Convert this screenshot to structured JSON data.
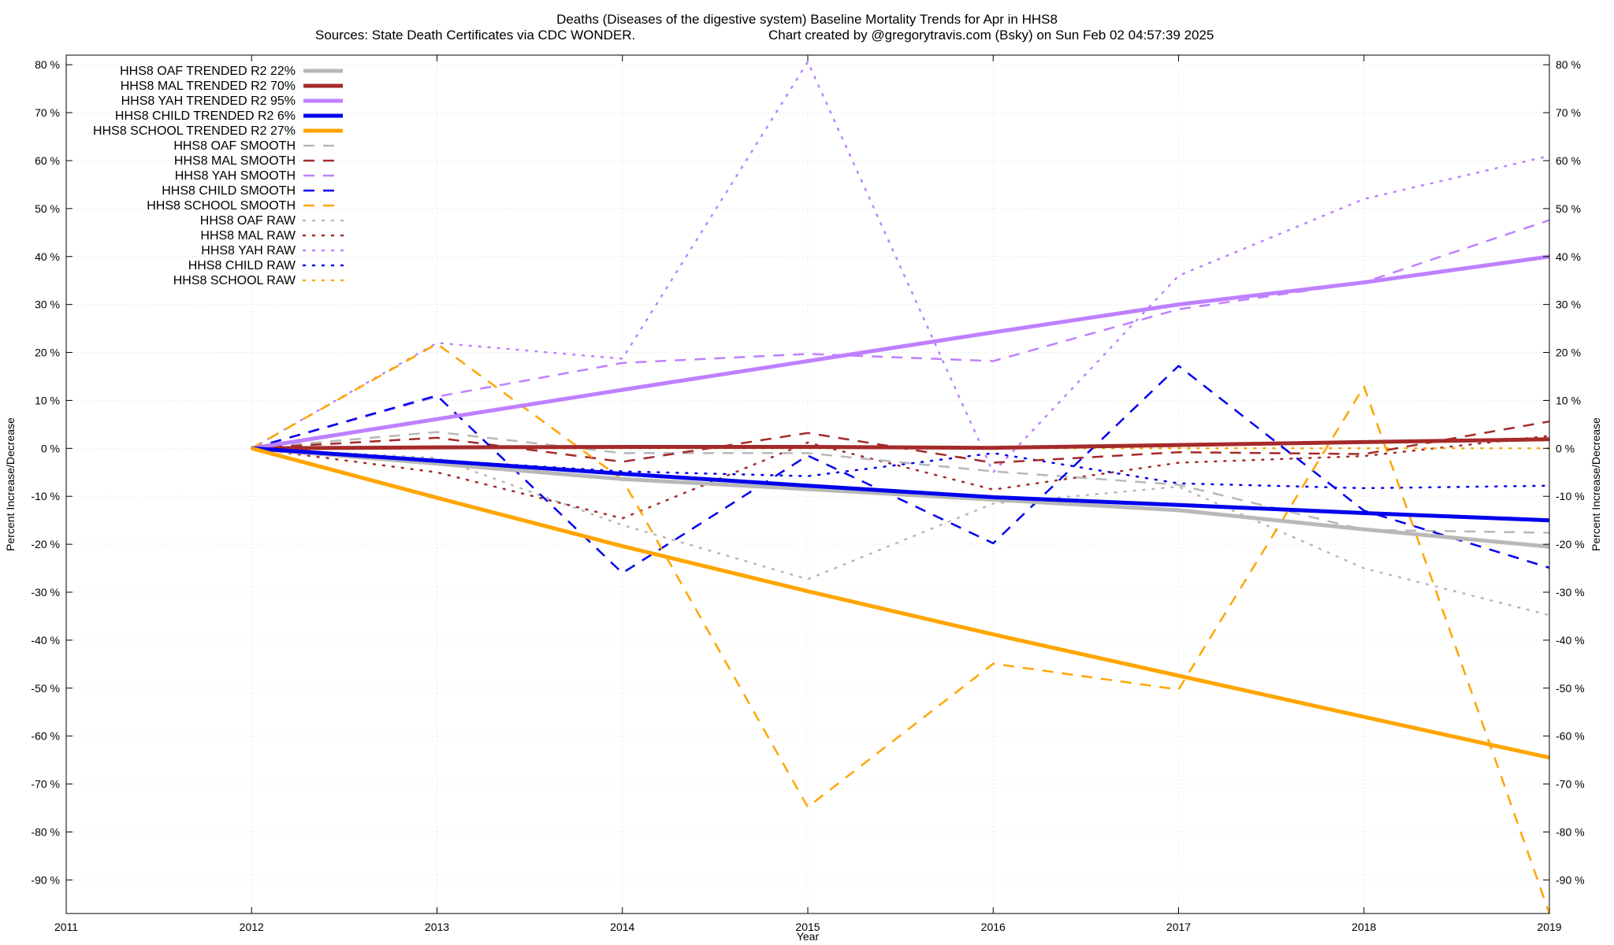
{
  "chart_data": {
    "type": "line",
    "title": "Deaths (Diseases of the digestive system)  Baseline Mortality Trends for Apr in HHS8",
    "subtitle_left": "Sources: State Death Certificates via CDC WONDER.",
    "subtitle_right": "Chart created by @gregorytravis.com (Bsky) on Sun Feb 02 04:57:39 2025",
    "xlabel": "Year",
    "ylabel": "Percent Increase/Decrease",
    "ylabel_right": "Percent Increase/Decrease",
    "xlim": [
      2011,
      2019
    ],
    "ylim": [
      -97,
      82
    ],
    "x_ticks": [
      2011,
      2012,
      2013,
      2014,
      2015,
      2016,
      2017,
      2018,
      2019
    ],
    "x_tick_labels": [
      "2011",
      "2012",
      "2013",
      "2014",
      "2015",
      "2016",
      "2017",
      "2018",
      "2019"
    ],
    "y_ticks": [
      80,
      70,
      60,
      50,
      40,
      30,
      20,
      10,
      0,
      -10,
      -20,
      -30,
      -40,
      -50,
      -60,
      -70,
      -80,
      -90
    ],
    "y_tick_labels": [
      "80 %",
      "70 %",
      "60 %",
      "50 %",
      "40 %",
      "30 %",
      "20 %",
      "10 %",
      "0 %",
      "-10 %",
      "-20 %",
      "-30 %",
      "-40 %",
      "-50 %",
      "-60 %",
      "-70 %",
      "-80 %",
      "-90 %"
    ],
    "grid": true,
    "legend_position": "top-left",
    "x": [
      2012,
      2013,
      2014,
      2015,
      2016,
      2017,
      2018,
      2019
    ],
    "series": [
      {
        "name": "HHS8 OAF TRENDED R2",
        "r2": "22%",
        "style": "solid",
        "color": "#b8b8b8",
        "values": [
          0,
          -3.2,
          -6.4,
          -8.5,
          -10.7,
          -12.9,
          -16.9,
          -20.5
        ]
      },
      {
        "name": "HHS8 MAL TRENDED R2",
        "r2": "70%",
        "style": "solid",
        "color": "#a52a2a",
        "values": [
          0,
          0.2,
          0.3,
          0.3,
          0.1,
          0.7,
          1.3,
          1.9
        ]
      },
      {
        "name": "HHS8 YAH TRENDED R2",
        "r2": "95%",
        "style": "solid",
        "color": "#bf80ff",
        "values": [
          0,
          6.1,
          12.2,
          18.2,
          24.2,
          30.0,
          34.6,
          40.0
        ]
      },
      {
        "name": "HHS8 CHILD TRENDED R2",
        "r2": "6%",
        "style": "solid",
        "color": "#0000ee",
        "values": [
          0,
          -2.6,
          -5.3,
          -7.8,
          -10.2,
          -11.8,
          -13.5,
          -15.0
        ]
      },
      {
        "name": "HHS8 SCHOOL TRENDED R2",
        "r2": "27%",
        "style": "solid",
        "color": "#ffa500",
        "values": [
          0,
          -10.3,
          -20.4,
          -29.8,
          -38.8,
          -47.4,
          -56.0,
          -64.5
        ]
      },
      {
        "name": "HHS8 OAF SMOOTH",
        "style": "dashed",
        "color": "#b8b8b8",
        "values": [
          0,
          3.4,
          -1.0,
          -1.0,
          -4.8,
          -7.6,
          -17.0,
          -17.6
        ]
      },
      {
        "name": "HHS8 MAL SMOOTH",
        "style": "dashed",
        "color": "#a52a2a",
        "values": [
          0,
          2.2,
          -2.8,
          3.2,
          -3.0,
          -0.8,
          -1.2,
          5.6
        ]
      },
      {
        "name": "HHS8 YAH SMOOTH",
        "style": "dashed",
        "color": "#bf80ff",
        "values": [
          0,
          10.8,
          17.8,
          19.7,
          18.2,
          29.0,
          34.6,
          47.6
        ]
      },
      {
        "name": "HHS8 CHILD SMOOTH",
        "style": "dashed",
        "color": "#0000ee",
        "values": [
          0,
          11.0,
          -26.0,
          -1.5,
          -19.8,
          17.2,
          -13.0,
          -24.9
        ]
      },
      {
        "name": "HHS8 SCHOOL SMOOTH",
        "style": "dashed",
        "color": "#ffa500",
        "values": [
          0,
          21.8,
          -6.5,
          -74.8,
          -44.9,
          -50.3,
          12.9,
          -97.0
        ]
      },
      {
        "name": "HHS8 OAF RAW",
        "style": "dotted",
        "color": "#b8b8b8",
        "values": [
          0,
          -2.0,
          -16.0,
          -27.3,
          -11.5,
          -8.0,
          -25.0,
          -34.8
        ]
      },
      {
        "name": "HHS8 MAL RAW",
        "style": "dotted",
        "color": "#a52a2a",
        "values": [
          0,
          -5.0,
          -14.6,
          1.2,
          -8.6,
          -3.0,
          -1.6,
          2.6
        ]
      },
      {
        "name": "HHS8 YAH RAW",
        "style": "dotted",
        "color": "#bf80ff",
        "values": [
          0,
          22.0,
          18.7,
          80.6,
          -5.0,
          36.0,
          52.0,
          61.0
        ]
      },
      {
        "name": "HHS8 CHILD RAW",
        "style": "dotted",
        "color": "#0000ee",
        "values": [
          0,
          -2.5,
          -4.8,
          -5.8,
          -1.0,
          -7.3,
          -8.3,
          -7.8
        ]
      },
      {
        "name": "HHS8 SCHOOL RAW",
        "style": "dotted",
        "color": "#ffa500",
        "values": [
          0,
          0.0,
          0.0,
          0.0,
          0.0,
          0.0,
          0.0,
          0.0
        ]
      }
    ]
  }
}
